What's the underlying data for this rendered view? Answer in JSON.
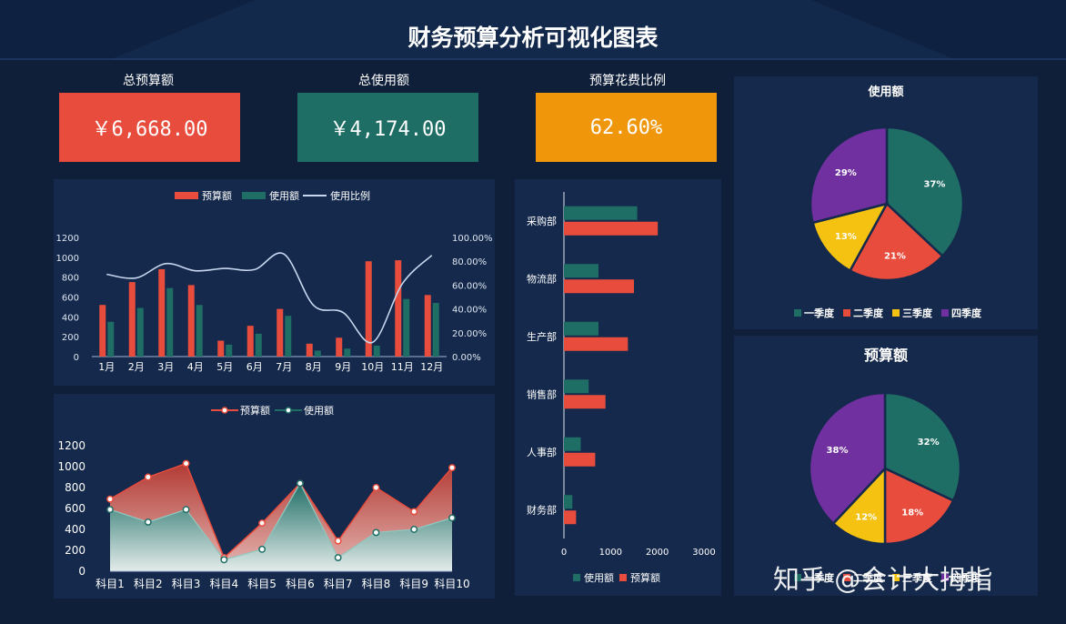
{
  "header": {
    "title": "财务预算分析可视化图表"
  },
  "kpis": [
    {
      "label": "总预算额",
      "value": "￥6,668.00",
      "color": "#e84c3d"
    },
    {
      "label": "总使用额",
      "value": "￥4,174.00",
      "color": "#1f6e66"
    },
    {
      "label": "预算花费比例",
      "value": "62.60%",
      "color": "#f0960a"
    }
  ],
  "colors": {
    "budget": "#e84c3d",
    "used": "#1f6e66",
    "ratio": "#c6d7ef",
    "q1": "#1f6e66",
    "q2": "#e84c3d",
    "q3": "#f5c211",
    "q4": "#7030a0",
    "panel": "#14294b",
    "bg": "#0f1f3a"
  },
  "watermark": "知乎 @会计大拇指",
  "chart_data": [
    {
      "id": "monthly",
      "type": "bar",
      "categories": [
        "1月",
        "2月",
        "3月",
        "4月",
        "5月",
        "6月",
        "7月",
        "8月",
        "9月",
        "10月",
        "11月",
        "12月"
      ],
      "series": [
        {
          "name": "预算额",
          "type": "bar",
          "values": [
            520,
            750,
            880,
            720,
            160,
            310,
            480,
            130,
            190,
            960,
            970,
            620
          ]
        },
        {
          "name": "使用额",
          "type": "bar",
          "values": [
            350,
            490,
            690,
            520,
            120,
            230,
            410,
            60,
            80,
            110,
            580,
            540
          ]
        },
        {
          "name": "使用比例",
          "type": "line",
          "axis": "right",
          "values": [
            0.69,
            0.66,
            0.78,
            0.72,
            0.74,
            0.73,
            0.86,
            0.43,
            0.37,
            0.12,
            0.61,
            0.85
          ]
        }
      ],
      "ylim": [
        0,
        1200
      ],
      "yticks": [
        "0",
        "200",
        "400",
        "600",
        "800",
        "1000",
        "1200"
      ],
      "y2lim": [
        0,
        1
      ],
      "y2ticks": [
        "0.00%",
        "20.00%",
        "40.00%",
        "60.00%",
        "80.00%",
        "100.00%"
      ],
      "legend": "top"
    },
    {
      "id": "subjects",
      "type": "area",
      "categories": [
        "科目1",
        "科目2",
        "科目3",
        "科目4",
        "科目5",
        "科目6",
        "科目7",
        "科目8",
        "科目9",
        "科目10"
      ],
      "series": [
        {
          "name": "预算额",
          "values": [
            690,
            900,
            1030,
            130,
            460,
            840,
            290,
            800,
            570,
            990
          ]
        },
        {
          "name": "使用额",
          "values": [
            590,
            470,
            590,
            110,
            210,
            840,
            130,
            370,
            400,
            510
          ]
        }
      ],
      "ylim": [
        0,
        1200
      ],
      "yticks": [
        "0",
        "200",
        "400",
        "600",
        "800",
        "1000",
        "1200"
      ],
      "legend": "top"
    },
    {
      "id": "departments",
      "type": "bar",
      "orientation": "horizontal",
      "categories": [
        "采购部",
        "物流部",
        "生产部",
        "销售部",
        "人事部",
        "财务部"
      ],
      "series": [
        {
          "name": "使用额",
          "values": [
            1570,
            740,
            740,
            530,
            360,
            180
          ]
        },
        {
          "name": "预算额",
          "values": [
            2010,
            1500,
            1370,
            890,
            670,
            260
          ]
        }
      ],
      "xlim": [
        0,
        3000
      ],
      "xticks": [
        "0",
        "1000",
        "2000",
        "3000"
      ],
      "legend": "bottom"
    },
    {
      "id": "pie-used",
      "type": "pie",
      "title": "使用额",
      "labels": [
        "一季度",
        "二季度",
        "三季度",
        "四季度"
      ],
      "values": [
        37,
        21,
        13,
        29
      ],
      "value_labels": [
        "37%",
        "21%",
        "13%",
        "29%"
      ],
      "legend": "bottom"
    },
    {
      "id": "pie-budget",
      "type": "pie",
      "title": "预算额",
      "labels": [
        "一季度",
        "二季度",
        "三季度",
        "四季度"
      ],
      "values": [
        32,
        18,
        12,
        38
      ],
      "value_labels": [
        "32%",
        "18%",
        "12%",
        "38%"
      ],
      "legend": "bottom"
    }
  ]
}
